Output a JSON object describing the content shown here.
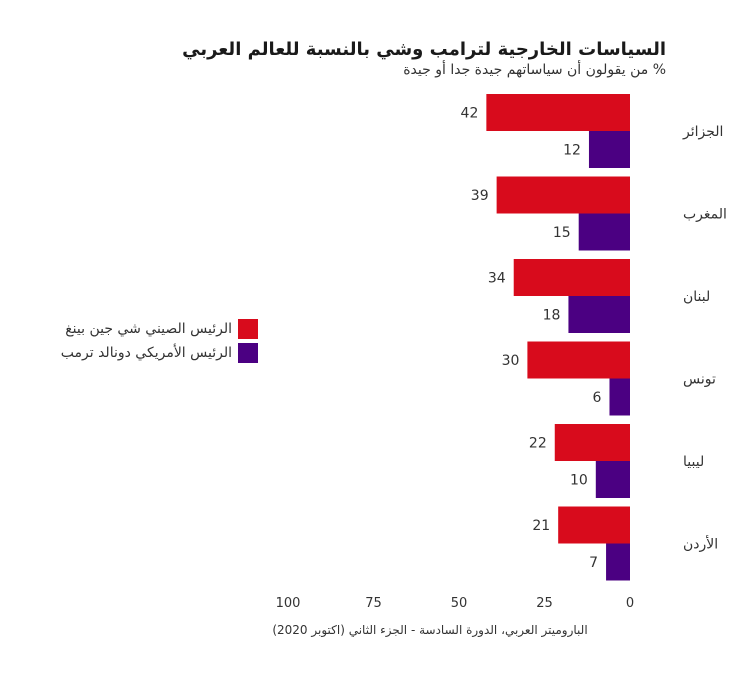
{
  "chart_data": {
    "type": "bar",
    "title": "السياسات الخارجية لترامب وشي بالنسبة للعالم العربي",
    "subtitle": "% من يقولون أن سياساتهم جيدة جدا أو جيدة",
    "source": "الباروميتر العربي، الدورة السادسة - الجزء الثاني (اكتوبر 2020)",
    "orientation": "horizontal",
    "x_direction": "right-to-left",
    "xlim": [
      0,
      100
    ],
    "xticks": [
      0,
      25,
      50,
      75,
      100
    ],
    "categories": [
      "الجزائر",
      "المغرب",
      "لبنان",
      "تونس",
      "ليبيا",
      "الأردن"
    ],
    "series": [
      {
        "name": "الرئيس الصيني شي جين بينغ",
        "color": "#d80b1c",
        "values": [
          42,
          39,
          34,
          30,
          22,
          21
        ]
      },
      {
        "name": "الرئيس الأمريكي دونالد ترمب",
        "color": "#4b0082",
        "values": [
          12,
          15,
          18,
          6,
          10,
          7
        ]
      }
    ],
    "legend_position": "left",
    "grid": false
  }
}
